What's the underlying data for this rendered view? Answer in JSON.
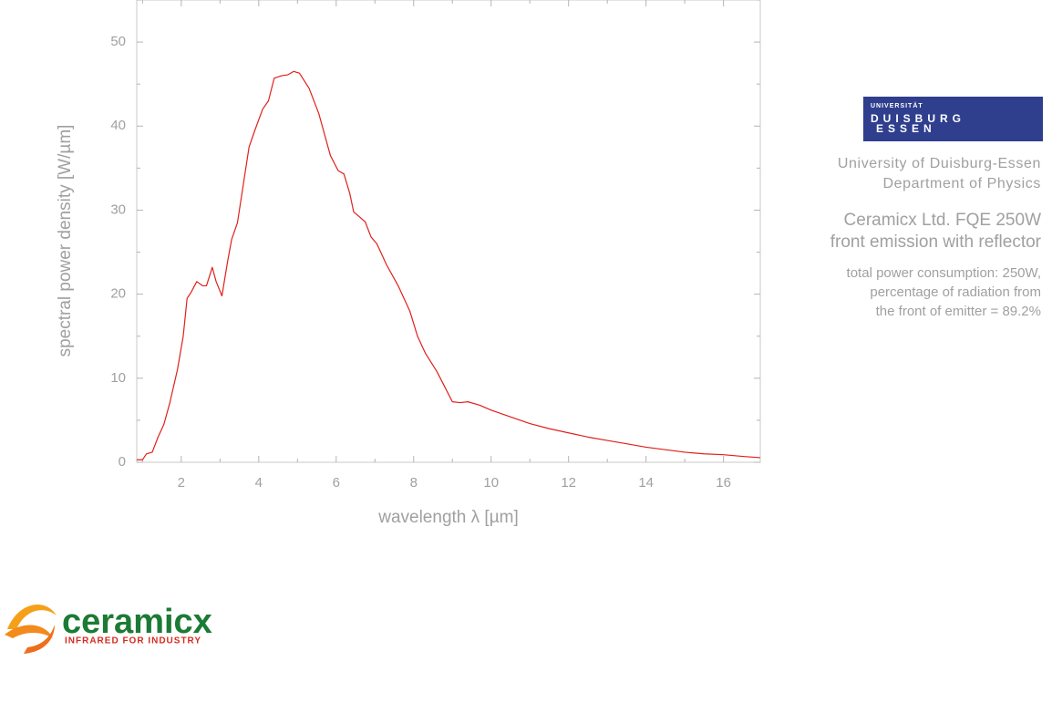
{
  "chart_data": {
    "type": "line",
    "x_label": "wavelength λ [µm]",
    "y_label": "spectral power density [W/µm]",
    "xlim": [
      0.85,
      16.95
    ],
    "xticks": [
      2,
      4,
      6,
      8,
      10,
      12,
      14,
      16
    ],
    "xminor_ticks": [
      1,
      3,
      5,
      7,
      9,
      11,
      13,
      15
    ],
    "ylim": [
      0,
      55
    ],
    "yticks": [
      0,
      10,
      20,
      30,
      40,
      50
    ],
    "yminor_ticks": [
      5,
      15,
      25,
      35,
      45,
      55
    ],
    "series": [
      {
        "color": "#e0201c",
        "x": [
          0.85,
          1.0,
          1.1,
          1.25,
          1.4,
          1.55,
          1.7,
          1.9,
          2.05,
          2.15,
          2.25,
          2.4,
          2.55,
          2.65,
          2.8,
          2.9,
          3.05,
          3.2,
          3.3,
          3.45,
          3.6,
          3.75,
          3.9,
          4.1,
          4.25,
          4.4,
          4.6,
          4.75,
          4.9,
          5.05,
          5.3,
          5.55,
          5.85,
          6.05,
          6.2,
          6.35,
          6.45,
          6.6,
          6.75,
          6.9,
          7.05,
          7.3,
          7.6,
          7.9,
          8.1,
          8.3,
          8.6,
          8.8,
          9.0,
          9.2,
          9.4,
          9.7,
          10,
          10.5,
          11,
          11.5,
          12,
          12.5,
          13,
          13.5,
          14,
          14.5,
          15,
          15.5,
          16,
          16.5,
          16.95
        ],
        "values": [
          0.3,
          0.3,
          1.0,
          1.2,
          3,
          4.5,
          7,
          11,
          15,
          19.5,
          20.2,
          21.5,
          21,
          21,
          23.2,
          21.5,
          19.8,
          24,
          26.5,
          28.5,
          33,
          37.5,
          39.5,
          42,
          43,
          45.7,
          46,
          46.1,
          46.5,
          46.3,
          44.5,
          41.5,
          36.5,
          34.7,
          34.3,
          32,
          29.8,
          29.2,
          28.6,
          26.8,
          26,
          23.5,
          21,
          18,
          15,
          13,
          10.8,
          9,
          7.2,
          7.1,
          7.2,
          6.8,
          6.2,
          5.4,
          4.6,
          4.0,
          3.5,
          3.0,
          2.6,
          2.2,
          1.8,
          1.5,
          1.2,
          1.0,
          0.9,
          0.7,
          0.55
        ]
      }
    ]
  },
  "university": {
    "logo_top": "UNIVERSITÄT",
    "logo_mid": "DUISBURG",
    "logo_bottom": "ESSEN",
    "lines": [
      "University of Duisburg-Essen",
      "Department of Physics"
    ]
  },
  "product": {
    "lines": [
      "Ceramicx Ltd. FQE 250W",
      "front emission with reflector"
    ]
  },
  "notes": {
    "lines": [
      "total power consumption: 250W,",
      "percentage of radiation from",
      "the front of emitter = 89.2%"
    ]
  },
  "brand": {
    "name": "ceramicx",
    "tagline": "INFRARED FOR INDUSTRY"
  }
}
